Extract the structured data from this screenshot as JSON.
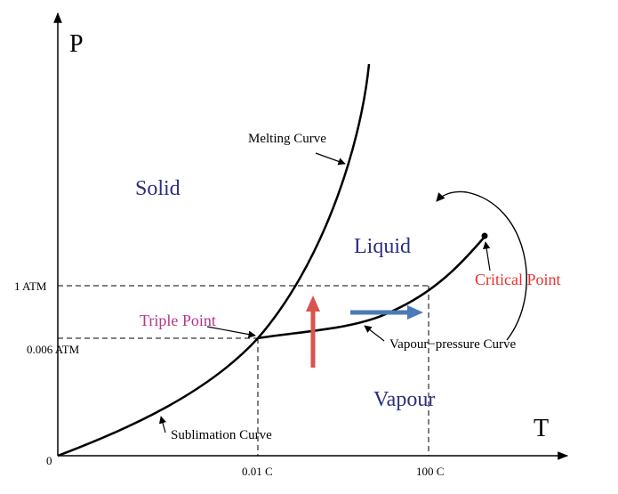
{
  "axes": {
    "y_letter": "P",
    "x_letter": "T",
    "origin": "0"
  },
  "ticks": {
    "p_high": "1 ATM",
    "p_low": "0.006 ATM",
    "t_low": "0.01 C",
    "t_high": "100 C"
  },
  "regions": {
    "solid": "Solid",
    "liquid": "Liquid",
    "vapour": "Vapour"
  },
  "curves": {
    "melting": "Melting Curve",
    "vapour_pressure": "Vapour−pressure Curve",
    "sublimation": "Sublimation Curve"
  },
  "points": {
    "triple": "Triple Point",
    "critical": "Critical Point"
  },
  "colors": {
    "phase_text": "#2b2f7e",
    "triple_point": "#b5338a",
    "critical_point": "#e8302b",
    "pressure_arrow": "#d9534f",
    "temperature_arrow": "#4a7ab8",
    "curve": "#000000"
  }
}
